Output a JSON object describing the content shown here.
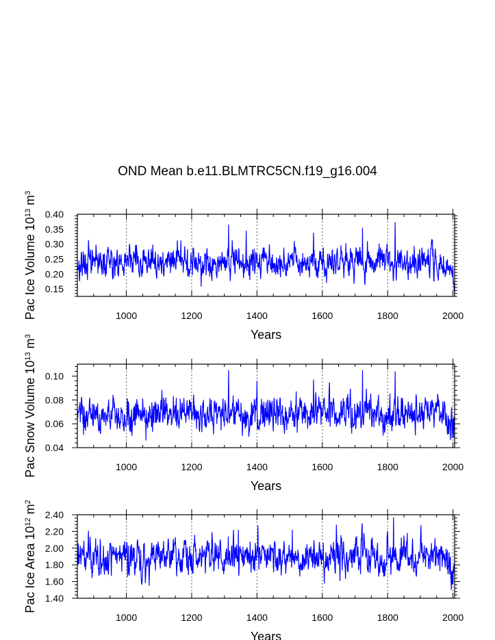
{
  "title": "OND Mean b.e11.BLMTRC5CN.f19_g16.004",
  "chart_data": [
    {
      "type": "line",
      "name": "pac-ice-volume",
      "ylabel": "Pac Ice Volume 10",
      "ylabel_exp": "13",
      "ylabel_unit": " m",
      "ylabel_unit_exp": "3",
      "xlabel": "Years",
      "xlim": [
        850,
        2005
      ],
      "ylim": [
        0.125,
        0.4
      ],
      "xticks": [
        1000,
        1200,
        1400,
        1600,
        1800,
        2000
      ],
      "yticks": [
        0.15,
        0.2,
        0.25,
        0.3,
        0.35,
        0.4
      ],
      "ytick_labels": [
        "0.15",
        "0.20",
        "0.25",
        "0.30",
        "0.35",
        "0.40"
      ],
      "vgrid": [
        1000,
        1200,
        1400,
        1600,
        1800,
        2000
      ],
      "series": {
        "mean": 0.24,
        "sd": 0.027,
        "end_drop": 0.06,
        "min": 0.14,
        "max": 0.375,
        "spikes": [
          [
            1313,
            0.365
          ],
          [
            1723,
            0.355
          ],
          [
            1823,
            0.373
          ],
          [
            1573,
            0.338
          ],
          [
            1367,
            0.345
          ]
        ]
      },
      "color": "#0000ff"
    },
    {
      "type": "line",
      "name": "pac-snow-volume",
      "ylabel": "Pac Snow Volume 10",
      "ylabel_exp": "13",
      "ylabel_unit": " m",
      "ylabel_unit_exp": "3",
      "xlabel": "Years",
      "xlim": [
        850,
        2005
      ],
      "ylim": [
        0.04,
        0.11
      ],
      "xticks": [
        1000,
        1200,
        1400,
        1600,
        1800,
        2000
      ],
      "yticks": [
        0.04,
        0.06,
        0.08,
        0.1
      ],
      "ytick_labels": [
        "0.04",
        "0.06",
        "0.08",
        "0.10"
      ],
      "vgrid": [
        1000,
        1200,
        1400,
        1600,
        1800,
        2000
      ],
      "series": {
        "mean": 0.068,
        "sd": 0.0075,
        "end_drop": 0.017,
        "min": 0.042,
        "max": 0.105,
        "spikes": [
          [
            1313,
            0.105
          ],
          [
            1723,
            0.105
          ],
          [
            1823,
            0.104
          ],
          [
            1573,
            0.097
          ],
          [
            1400,
            0.096
          ]
        ]
      },
      "color": "#0000ff"
    },
    {
      "type": "line",
      "name": "pac-ice-area",
      "ylabel": "Pac Ice Area 10",
      "ylabel_exp": "12",
      "ylabel_unit": " m",
      "ylabel_unit_exp": "2",
      "xlabel": "Years",
      "xlim": [
        850,
        2005
      ],
      "ylim": [
        1.4,
        2.4
      ],
      "xticks": [
        1000,
        1200,
        1400,
        1600,
        1800,
        2000
      ],
      "yticks": [
        1.4,
        1.6,
        1.8,
        2.0,
        2.2,
        2.4
      ],
      "ytick_labels": [
        "1.40",
        "1.60",
        "1.80",
        "2.00",
        "2.20",
        "2.40"
      ],
      "vgrid": [
        1000,
        1200,
        1400,
        1600,
        1800,
        2000
      ],
      "series": {
        "mean": 1.9,
        "sd": 0.11,
        "end_drop": 0.25,
        "min": 1.5,
        "max": 2.37,
        "spikes": [
          [
            1818,
            2.37
          ],
          [
            1403,
            2.27
          ],
          [
            1643,
            2.28
          ],
          [
            1343,
            2.22
          ],
          [
            1508,
            2.22
          ]
        ]
      },
      "color": "#0000ff"
    }
  ]
}
